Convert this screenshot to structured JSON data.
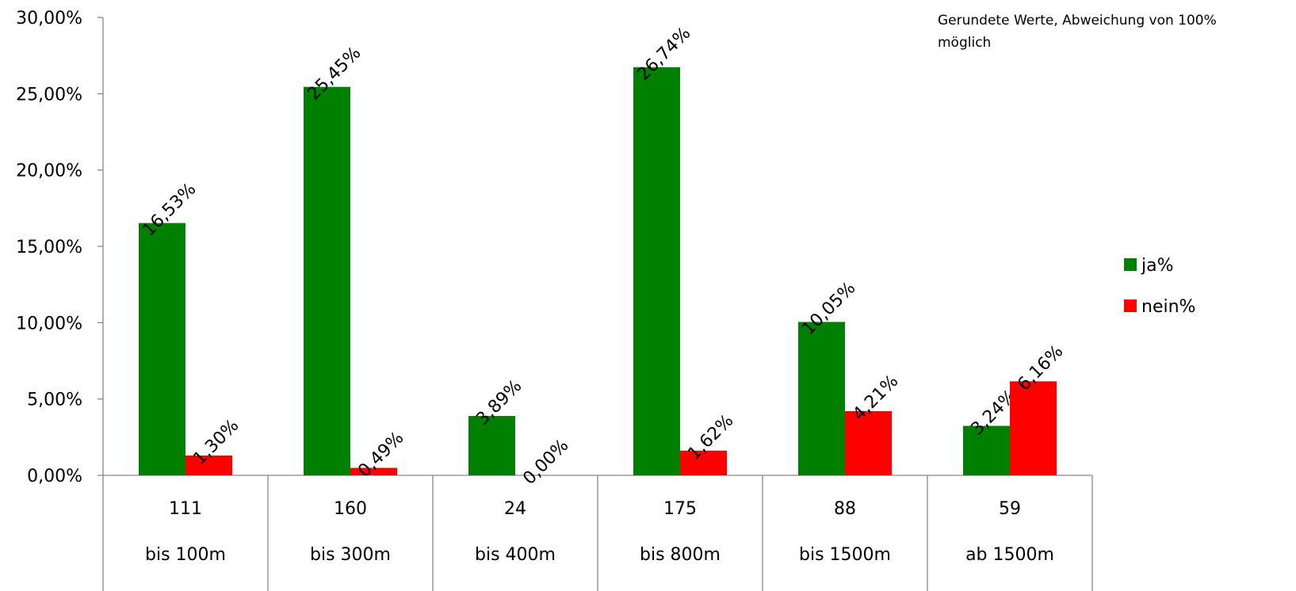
{
  "chart_data": {
    "type": "bar",
    "note": "Gerundete Werte, Abweichung von 100% möglich",
    "ylim": [
      0,
      30
    ],
    "y_ticks": [
      "0,00%",
      "5,00%",
      "10,00%",
      "15,00%",
      "20,00%",
      "25,00%",
      "30,00%"
    ],
    "category_counts": [
      "111",
      "160",
      "24",
      "175",
      "88",
      "59"
    ],
    "categories": [
      "bis 100m",
      "bis 300m",
      "bis 400m",
      "bis 800m",
      "bis 1500m",
      "ab 1500m"
    ],
    "series": [
      {
        "name": "ja%",
        "color": "#008000",
        "values": [
          16.53,
          25.45,
          3.89,
          26.74,
          10.05,
          3.24
        ],
        "labels": [
          "16,53%",
          "25,45%",
          "3,89%",
          "26,74%",
          "10,05%",
          "3,24%"
        ]
      },
      {
        "name": "nein%",
        "color": "#ff0000",
        "values": [
          1.3,
          0.49,
          0.0,
          1.62,
          4.21,
          6.16
        ],
        "labels": [
          "1,30%",
          "0,49%",
          "0,00%",
          "1,62%",
          "4,21%",
          "6,16%"
        ]
      }
    ],
    "legend_position": "right",
    "grid": false
  }
}
